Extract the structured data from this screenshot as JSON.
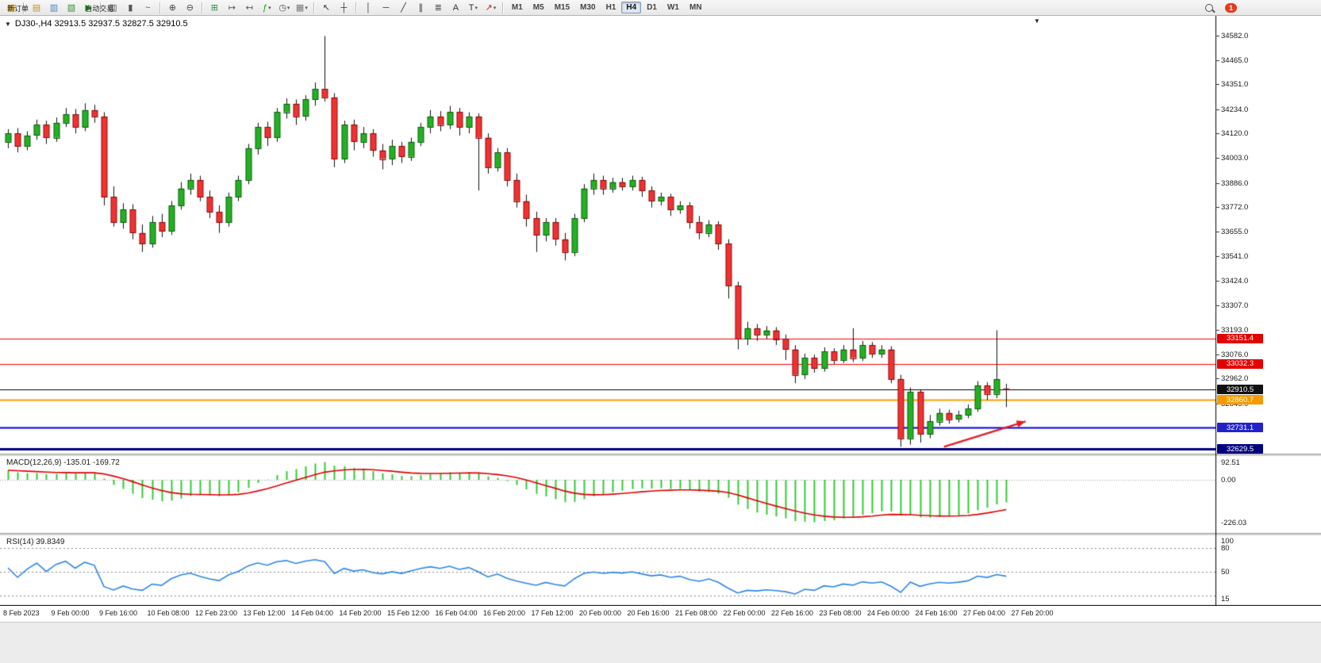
{
  "toolbar": {
    "items": [
      {
        "t": "btn",
        "name": "new-order-button",
        "glyph": "▦",
        "gcolor": "#c8920a",
        "label": "新订单"
      },
      {
        "t": "sep"
      },
      {
        "t": "icon",
        "name": "market-watch-icon",
        "glyph": "▤",
        "color": "#c8920a"
      },
      {
        "t": "icon",
        "name": "data-window-icon",
        "glyph": "▥",
        "color": "#4a7ebb"
      },
      {
        "t": "icon",
        "name": "navigator-icon",
        "glyph": "▧",
        "color": "#3a8f3a"
      },
      {
        "t": "btn",
        "name": "auto-trading-button",
        "glyph": "▶",
        "gcolor": "#18a018",
        "label": "自动交易"
      },
      {
        "t": "sep"
      },
      {
        "t": "icon",
        "name": "bar-chart-mode-icon",
        "glyph": "▥",
        "color": "#555555"
      },
      {
        "t": "icon",
        "name": "candlestick-mode-icon",
        "glyph": "▮",
        "color": "#555555"
      },
      {
        "t": "icon",
        "name": "line-chart-mode-icon",
        "glyph": "~",
        "color": "#555555"
      },
      {
        "t": "sep"
      },
      {
        "t": "icon",
        "name": "zoom-in-icon",
        "glyph": "⊕",
        "color": "#444444"
      },
      {
        "t": "icon",
        "name": "zoom-out-icon",
        "glyph": "⊖",
        "color": "#444444"
      },
      {
        "t": "sep"
      },
      {
        "t": "icon",
        "name": "tile-windows-icon",
        "glyph": "⊞",
        "color": "#2e8b57"
      },
      {
        "t": "icon",
        "name": "auto-scroll-icon",
        "glyph": "↦",
        "color": "#555555"
      },
      {
        "t": "icon",
        "name": "chart-shift-icon",
        "glyph": "↤",
        "color": "#555555"
      },
      {
        "t": "icon",
        "name": "indicators-icon",
        "glyph": "ƒ",
        "color": "#18a018",
        "dd": true
      },
      {
        "t": "icon",
        "name": "periods-icon",
        "glyph": "◷",
        "color": "#555555",
        "dd": true
      },
      {
        "t": "icon",
        "name": "templates-icon",
        "glyph": "▦",
        "color": "#777777",
        "dd": true
      },
      {
        "t": "sep"
      },
      {
        "t": "icon",
        "name": "cursor-icon",
        "glyph": "↖",
        "color": "#333333"
      },
      {
        "t": "icon",
        "name": "crosshair-icon",
        "glyph": "┼",
        "color": "#333333"
      },
      {
        "t": "sep"
      },
      {
        "t": "icon",
        "name": "vertical-line-icon",
        "glyph": "│",
        "color": "#333333"
      },
      {
        "t": "icon",
        "name": "horizontal-line-icon",
        "glyph": "─",
        "color": "#333333"
      },
      {
        "t": "icon",
        "name": "trendline-icon",
        "glyph": "╱",
        "color": "#333333"
      },
      {
        "t": "icon",
        "name": "equidistant-channel-icon",
        "glyph": "∥",
        "color": "#333333"
      },
      {
        "t": "icon",
        "name": "fibonacci-icon",
        "glyph": "≣",
        "color": "#333333"
      },
      {
        "t": "icon",
        "name": "text-icon",
        "glyph": "A",
        "color": "#333333"
      },
      {
        "t": "icon",
        "name": "text-label-icon",
        "glyph": "T",
        "color": "#333333",
        "dd": true
      },
      {
        "t": "icon",
        "name": "arrows-tool-icon",
        "glyph": "↗",
        "color": "#c22222",
        "dd": true
      },
      {
        "t": "sep"
      },
      {
        "t": "tfgroup"
      }
    ],
    "timeframes": [
      "M1",
      "M5",
      "M15",
      "M30",
      "H1",
      "H4",
      "D1",
      "W1",
      "MN"
    ],
    "active_timeframe": "H4",
    "notification_count": "1",
    "overflow_glyph": "▼"
  },
  "chart": {
    "collapse_glyph": "▼",
    "symbol_header": "DJ30-,H4 32913.5 32937.5 32827.5 32910.5",
    "price_ticks": [
      "34582.0",
      "34465.0",
      "34351.0",
      "34234.0",
      "34120.0",
      "34003.0",
      "33886.0",
      "33772.0",
      "33655.0",
      "33541.0",
      "33424.0",
      "33307.0",
      "33193.0",
      "33076.0",
      "32962.0",
      "32845.0"
    ],
    "levels": [
      {
        "price": 33151.4,
        "label": "33151.4",
        "color": "#ff0000",
        "bg": "#e30000",
        "width": 1
      },
      {
        "price": 33032.3,
        "label": "33032.3",
        "color": "#ff0000",
        "bg": "#e30000",
        "width": 1
      },
      {
        "price": 32910.5,
        "label": "32910.5",
        "color": "#000000",
        "bg": "#111111",
        "width": 1
      },
      {
        "price": 32860.7,
        "label": "32860.7",
        "color": "#ffa000",
        "bg": "#f59b00",
        "width": 2
      },
      {
        "price": 32731.1,
        "label": "32731.1",
        "color": "#0000ee",
        "bg": "#2222cc",
        "width": 2
      },
      {
        "price": 32629.5,
        "label": "32629.5",
        "color": "#000080",
        "bg": "#000080",
        "width": 3
      }
    ],
    "time_labels": [
      "8 Feb 2023",
      "9 Feb 00:00",
      "9 Feb 16:00",
      "10 Feb 08:00",
      "12 Feb 23:00",
      "13 Feb 12:00",
      "14 Feb 04:00",
      "14 Feb 20:00",
      "15 Feb 12:00",
      "16 Feb 04:00",
      "16 Feb 20:00",
      "17 Feb 12:00",
      "20 Feb 00:00",
      "20 Feb 16:00",
      "21 Feb 08:00",
      "22 Feb 00:00",
      "22 Feb 16:00",
      "23 Feb 08:00",
      "24 Feb 00:00",
      "24 Feb 16:00",
      "27 Feb 04:00",
      "27 Feb 20:00"
    ]
  },
  "macd": {
    "label": "MACD(12,26,9) -135.01 -169.72",
    "scale": [
      "92.51",
      "0.00",
      "-226.03"
    ]
  },
  "rsi": {
    "label": "RSI(14) 39.8349",
    "scale": [
      "100",
      "80",
      "50",
      "15"
    ]
  },
  "chart_data": {
    "type": "candlestick",
    "symbol": "DJ30-",
    "timeframe": "H4",
    "last": {
      "open": 32913.5,
      "high": 32937.5,
      "low": 32827.5,
      "close": 32910.5
    },
    "price_axis_range": [
      32590,
      34620
    ],
    "horizontal_levels": [
      33151.4,
      33032.3,
      32910.5,
      32860.7,
      32731.1,
      32629.5
    ],
    "indicators": {
      "macd": {
        "params": [
          12,
          26,
          9
        ],
        "value": -135.01,
        "signal": -169.72
      },
      "rsi": {
        "period": 14,
        "value": 39.8349
      }
    },
    "trend_arrow": {
      "start": {
        "candle": 97.5,
        "price": 32640
      },
      "end": {
        "candle": 106,
        "price": 32760
      },
      "color": "#e02020"
    },
    "colors": {
      "up_fill": "#23b123",
      "up_border": "#0a5f0a",
      "down_fill": "#f03232",
      "down_border": "#8f0909",
      "macd_hist": "#35c935",
      "macd_signal": "#e00000",
      "rsi_line": "#2e86e8"
    },
    "candles": [
      [
        34080,
        34140,
        34050,
        34120
      ],
      [
        34120,
        34145,
        34030,
        34060
      ],
      [
        34060,
        34130,
        34040,
        34110
      ],
      [
        34110,
        34185,
        34090,
        34160
      ],
      [
        34160,
        34180,
        34070,
        34100
      ],
      [
        34100,
        34195,
        34080,
        34170
      ],
      [
        34170,
        34240,
        34150,
        34210
      ],
      [
        34210,
        34235,
        34120,
        34150
      ],
      [
        34150,
        34262,
        34130,
        34230
      ],
      [
        34230,
        34255,
        34170,
        34200
      ],
      [
        34200,
        34220,
        33780,
        33820
      ],
      [
        33820,
        33870,
        33680,
        33700
      ],
      [
        33700,
        33790,
        33670,
        33760
      ],
      [
        33760,
        33785,
        33620,
        33650
      ],
      [
        33650,
        33690,
        33560,
        33600
      ],
      [
        33600,
        33730,
        33580,
        33700
      ],
      [
        33700,
        33740,
        33630,
        33660
      ],
      [
        33660,
        33800,
        33640,
        33780
      ],
      [
        33780,
        33890,
        33760,
        33860
      ],
      [
        33860,
        33930,
        33830,
        33900
      ],
      [
        33900,
        33920,
        33800,
        33820
      ],
      [
        33820,
        33850,
        33720,
        33750
      ],
      [
        33750,
        33780,
        33650,
        33700
      ],
      [
        33700,
        33840,
        33680,
        33820
      ],
      [
        33820,
        33920,
        33800,
        33900
      ],
      [
        33900,
        34070,
        33880,
        34050
      ],
      [
        34050,
        34170,
        34020,
        34150
      ],
      [
        34150,
        34175,
        34060,
        34100
      ],
      [
        34100,
        34240,
        34080,
        34220
      ],
      [
        34220,
        34285,
        34190,
        34260
      ],
      [
        34260,
        34280,
        34160,
        34200
      ],
      [
        34200,
        34300,
        34180,
        34280
      ],
      [
        34280,
        34360,
        34250,
        34330
      ],
      [
        34330,
        34580,
        34270,
        34290
      ],
      [
        34290,
        34310,
        33960,
        34000
      ],
      [
        34000,
        34180,
        33980,
        34160
      ],
      [
        34160,
        34185,
        34040,
        34080
      ],
      [
        34080,
        34150,
        34050,
        34120
      ],
      [
        34120,
        34140,
        34010,
        34040
      ],
      [
        34040,
        34070,
        33950,
        34000
      ],
      [
        34000,
        34090,
        33970,
        34060
      ],
      [
        34060,
        34080,
        33980,
        34010
      ],
      [
        34010,
        34100,
        33990,
        34080
      ],
      [
        34080,
        34170,
        34060,
        34150
      ],
      [
        34150,
        34230,
        34120,
        34200
      ],
      [
        34200,
        34225,
        34130,
        34160
      ],
      [
        34160,
        34250,
        34140,
        34220
      ],
      [
        34220,
        34240,
        34110,
        34150
      ],
      [
        34150,
        34220,
        34120,
        34200
      ],
      [
        34200,
        34215,
        33850,
        34100
      ],
      [
        34100,
        34120,
        33930,
        33960
      ],
      [
        33960,
        34050,
        33940,
        34030
      ],
      [
        34030,
        34050,
        33870,
        33900
      ],
      [
        33900,
        33930,
        33770,
        33800
      ],
      [
        33800,
        33830,
        33680,
        33720
      ],
      [
        33720,
        33750,
        33560,
        33640
      ],
      [
        33640,
        33720,
        33610,
        33700
      ],
      [
        33700,
        33720,
        33590,
        33620
      ],
      [
        33620,
        33650,
        33520,
        33560
      ],
      [
        33560,
        33740,
        33540,
        33720
      ],
      [
        33720,
        33880,
        33700,
        33860
      ],
      [
        33860,
        33930,
        33830,
        33900
      ],
      [
        33900,
        33920,
        33830,
        33860
      ],
      [
        33860,
        33910,
        33840,
        33890
      ],
      [
        33890,
        33910,
        33850,
        33870
      ],
      [
        33870,
        33920,
        33850,
        33900
      ],
      [
        33900,
        33915,
        33820,
        33850
      ],
      [
        33850,
        33870,
        33770,
        33800
      ],
      [
        33800,
        33840,
        33780,
        33820
      ],
      [
        33820,
        33835,
        33730,
        33760
      ],
      [
        33760,
        33800,
        33740,
        33780
      ],
      [
        33780,
        33795,
        33670,
        33700
      ],
      [
        33700,
        33730,
        33620,
        33650
      ],
      [
        33650,
        33710,
        33630,
        33690
      ],
      [
        33690,
        33705,
        33570,
        33600
      ],
      [
        33600,
        33620,
        33340,
        33400
      ],
      [
        33400,
        33420,
        33100,
        33150
      ],
      [
        33150,
        33230,
        33120,
        33200
      ],
      [
        33200,
        33220,
        33140,
        33170
      ],
      [
        33170,
        33210,
        33150,
        33190
      ],
      [
        33190,
        33205,
        33120,
        33150
      ],
      [
        33150,
        33170,
        33050,
        33100
      ],
      [
        33100,
        33120,
        32940,
        32980
      ],
      [
        32980,
        33080,
        32960,
        33060
      ],
      [
        33060,
        33075,
        32990,
        33010
      ],
      [
        33010,
        33110,
        32995,
        33090
      ],
      [
        33090,
        33105,
        33030,
        33050
      ],
      [
        33050,
        33120,
        33035,
        33100
      ],
      [
        33100,
        33200,
        33040,
        33060
      ],
      [
        33060,
        33140,
        33045,
        33120
      ],
      [
        33120,
        33135,
        33060,
        33080
      ],
      [
        33080,
        33120,
        33060,
        33100
      ],
      [
        33100,
        33115,
        32940,
        32960
      ],
      [
        32960,
        32980,
        32640,
        32680
      ],
      [
        32680,
        32920,
        32650,
        32900
      ],
      [
        32900,
        32910,
        32660,
        32700
      ],
      [
        32700,
        32790,
        32680,
        32760
      ],
      [
        32760,
        32820,
        32740,
        32800
      ],
      [
        32800,
        32815,
        32750,
        32770
      ],
      [
        32770,
        32810,
        32755,
        32790
      ],
      [
        32790,
        32840,
        32775,
        32820
      ],
      [
        32820,
        32950,
        32805,
        32930
      ],
      [
        32930,
        32945,
        32860,
        32890
      ],
      [
        32890,
        33190,
        32870,
        32960
      ],
      [
        32913.5,
        32937.5,
        32827.5,
        32910.5
      ]
    ]
  }
}
